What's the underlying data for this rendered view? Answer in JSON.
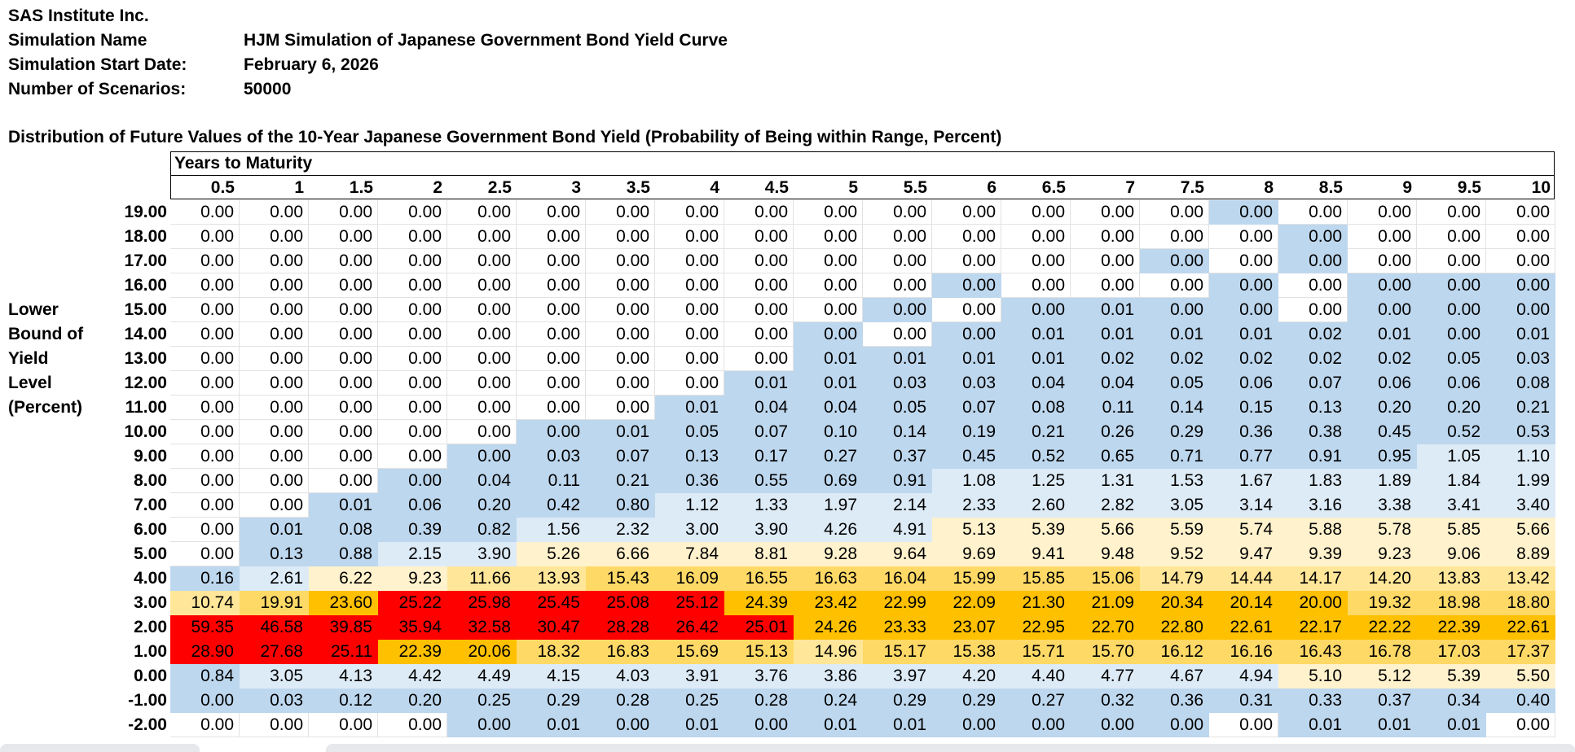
{
  "header": {
    "company": "SAS Institute Inc.",
    "fields": [
      {
        "label": "Simulation Name",
        "value": "HJM Simulation of Japanese Government Bond Yield Curve"
      },
      {
        "label": "Simulation Start Date:",
        "value": "February 6, 2026"
      },
      {
        "label": "Number of Scenarios:",
        "value": "50000"
      }
    ]
  },
  "table": {
    "title": "Distribution of Future Values of the 10-Year Japanese Government Bond Yield (Probability of Being within Range, Percent)",
    "column_group_label": "Years to Maturity",
    "row_axis_label": [
      "Lower",
      "Bound of",
      "Yield",
      "Level",
      "(Percent)"
    ],
    "columns": [
      "0.5",
      "1",
      "1.5",
      "2",
      "2.5",
      "3",
      "3.5",
      "4",
      "4.5",
      "5",
      "5.5",
      "6",
      "6.5",
      "7",
      "7.5",
      "8",
      "8.5",
      "9",
      "9.5",
      "10"
    ],
    "rows": [
      {
        "label": "19.00",
        "values": [
          "0.00",
          "0.00",
          "0.00",
          "0.00",
          "0.00",
          "0.00",
          "0.00",
          "0.00",
          "0.00",
          "0.00",
          "0.00",
          "0.00",
          "0.00",
          "0.00",
          "0.00",
          "0.00",
          "0.00",
          "0.00",
          "0.00",
          "0.00"
        ],
        "zero_shaded": [
          15
        ]
      },
      {
        "label": "18.00",
        "values": [
          "0.00",
          "0.00",
          "0.00",
          "0.00",
          "0.00",
          "0.00",
          "0.00",
          "0.00",
          "0.00",
          "0.00",
          "0.00",
          "0.00",
          "0.00",
          "0.00",
          "0.00",
          "0.00",
          "0.00",
          "0.00",
          "0.00",
          "0.00"
        ],
        "zero_shaded": [
          16
        ]
      },
      {
        "label": "17.00",
        "values": [
          "0.00",
          "0.00",
          "0.00",
          "0.00",
          "0.00",
          "0.00",
          "0.00",
          "0.00",
          "0.00",
          "0.00",
          "0.00",
          "0.00",
          "0.00",
          "0.00",
          "0.00",
          "0.00",
          "0.00",
          "0.00",
          "0.00",
          "0.00"
        ],
        "zero_shaded": [
          14,
          16
        ]
      },
      {
        "label": "16.00",
        "values": [
          "0.00",
          "0.00",
          "0.00",
          "0.00",
          "0.00",
          "0.00",
          "0.00",
          "0.00",
          "0.00",
          "0.00",
          "0.00",
          "0.00",
          "0.00",
          "0.00",
          "0.00",
          "0.00",
          "0.00",
          "0.00",
          "0.00",
          "0.00"
        ],
        "zero_shaded": [
          11,
          15,
          17,
          18,
          19
        ]
      },
      {
        "label": "15.00",
        "values": [
          "0.00",
          "0.00",
          "0.00",
          "0.00",
          "0.00",
          "0.00",
          "0.00",
          "0.00",
          "0.00",
          "0.00",
          "0.00",
          "0.00",
          "0.00",
          "0.01",
          "0.00",
          "0.00",
          "0.00",
          "0.00",
          "0.00",
          "0.00"
        ],
        "zero_shaded": [
          10,
          12,
          14,
          15,
          17,
          18,
          19
        ]
      },
      {
        "label": "14.00",
        "values": [
          "0.00",
          "0.00",
          "0.00",
          "0.00",
          "0.00",
          "0.00",
          "0.00",
          "0.00",
          "0.00",
          "0.00",
          "0.00",
          "0.00",
          "0.01",
          "0.01",
          "0.01",
          "0.01",
          "0.02",
          "0.01",
          "0.00",
          "0.01"
        ],
        "zero_shaded": [
          9,
          11,
          18
        ]
      },
      {
        "label": "13.00",
        "values": [
          "0.00",
          "0.00",
          "0.00",
          "0.00",
          "0.00",
          "0.00",
          "0.00",
          "0.00",
          "0.00",
          "0.01",
          "0.01",
          "0.01",
          "0.01",
          "0.02",
          "0.02",
          "0.02",
          "0.02",
          "0.02",
          "0.05",
          "0.03"
        ],
        "zero_shaded": []
      },
      {
        "label": "12.00",
        "values": [
          "0.00",
          "0.00",
          "0.00",
          "0.00",
          "0.00",
          "0.00",
          "0.00",
          "0.00",
          "0.01",
          "0.01",
          "0.03",
          "0.03",
          "0.04",
          "0.04",
          "0.05",
          "0.06",
          "0.07",
          "0.06",
          "0.06",
          "0.08"
        ],
        "zero_shaded": []
      },
      {
        "label": "11.00",
        "values": [
          "0.00",
          "0.00",
          "0.00",
          "0.00",
          "0.00",
          "0.00",
          "0.00",
          "0.01",
          "0.04",
          "0.04",
          "0.05",
          "0.07",
          "0.08",
          "0.11",
          "0.14",
          "0.15",
          "0.13",
          "0.20",
          "0.20",
          "0.21"
        ],
        "zero_shaded": []
      },
      {
        "label": "10.00",
        "values": [
          "0.00",
          "0.00",
          "0.00",
          "0.00",
          "0.00",
          "0.00",
          "0.01",
          "0.05",
          "0.07",
          "0.10",
          "0.14",
          "0.19",
          "0.21",
          "0.26",
          "0.29",
          "0.36",
          "0.38",
          "0.45",
          "0.52",
          "0.53"
        ],
        "zero_shaded": [
          5
        ]
      },
      {
        "label": "9.00",
        "values": [
          "0.00",
          "0.00",
          "0.00",
          "0.00",
          "0.00",
          "0.03",
          "0.07",
          "0.13",
          "0.17",
          "0.27",
          "0.37",
          "0.45",
          "0.52",
          "0.65",
          "0.71",
          "0.77",
          "0.91",
          "0.95",
          "1.05",
          "1.10"
        ],
        "zero_shaded": [
          4
        ]
      },
      {
        "label": "8.00",
        "values": [
          "0.00",
          "0.00",
          "0.00",
          "0.00",
          "0.04",
          "0.11",
          "0.21",
          "0.36",
          "0.55",
          "0.69",
          "0.91",
          "1.08",
          "1.25",
          "1.31",
          "1.53",
          "1.67",
          "1.83",
          "1.89",
          "1.84",
          "1.99"
        ],
        "zero_shaded": [
          3
        ]
      },
      {
        "label": "7.00",
        "values": [
          "0.00",
          "0.00",
          "0.01",
          "0.06",
          "0.20",
          "0.42",
          "0.80",
          "1.12",
          "1.33",
          "1.97",
          "2.14",
          "2.33",
          "2.60",
          "2.82",
          "3.05",
          "3.14",
          "3.16",
          "3.38",
          "3.41",
          "3.40"
        ],
        "zero_shaded": []
      },
      {
        "label": "6.00",
        "values": [
          "0.00",
          "0.01",
          "0.08",
          "0.39",
          "0.82",
          "1.56",
          "2.32",
          "3.00",
          "3.90",
          "4.26",
          "4.91",
          "5.13",
          "5.39",
          "5.66",
          "5.59",
          "5.74",
          "5.88",
          "5.78",
          "5.85",
          "5.66"
        ],
        "zero_shaded": []
      },
      {
        "label": "5.00",
        "values": [
          "0.00",
          "0.13",
          "0.88",
          "2.15",
          "3.90",
          "5.26",
          "6.66",
          "7.84",
          "8.81",
          "9.28",
          "9.64",
          "9.69",
          "9.41",
          "9.48",
          "9.52",
          "9.47",
          "9.39",
          "9.23",
          "9.06",
          "8.89"
        ],
        "zero_shaded": []
      },
      {
        "label": "4.00",
        "values": [
          "0.16",
          "2.61",
          "6.22",
          "9.23",
          "11.66",
          "13.93",
          "15.43",
          "16.09",
          "16.55",
          "16.63",
          "16.04",
          "15.99",
          "15.85",
          "15.06",
          "14.79",
          "14.44",
          "14.17",
          "14.20",
          "13.83",
          "13.42"
        ],
        "zero_shaded": []
      },
      {
        "label": "3.00",
        "values": [
          "10.74",
          "19.91",
          "23.60",
          "25.22",
          "25.98",
          "25.45",
          "25.08",
          "25.12",
          "24.39",
          "23.42",
          "22.99",
          "22.09",
          "21.30",
          "21.09",
          "20.34",
          "20.14",
          "20.00",
          "19.32",
          "18.98",
          "18.80"
        ],
        "zero_shaded": []
      },
      {
        "label": "2.00",
        "values": [
          "59.35",
          "46.58",
          "39.85",
          "35.94",
          "32.58",
          "30.47",
          "28.28",
          "26.42",
          "25.01",
          "24.26",
          "23.33",
          "23.07",
          "22.95",
          "22.70",
          "22.80",
          "22.61",
          "22.17",
          "22.22",
          "22.39",
          "22.61"
        ],
        "zero_shaded": []
      },
      {
        "label": "1.00",
        "values": [
          "28.90",
          "27.68",
          "25.11",
          "22.39",
          "20.06",
          "18.32",
          "16.83",
          "15.69",
          "15.13",
          "14.96",
          "15.17",
          "15.38",
          "15.71",
          "15.70",
          "16.12",
          "16.16",
          "16.43",
          "16.78",
          "17.03",
          "17.37"
        ],
        "zero_shaded": []
      },
      {
        "label": "0.00",
        "values": [
          "0.84",
          "3.05",
          "4.13",
          "4.42",
          "4.49",
          "4.15",
          "4.03",
          "3.91",
          "3.76",
          "3.86",
          "3.97",
          "4.20",
          "4.40",
          "4.77",
          "4.67",
          "4.94",
          "5.10",
          "5.12",
          "5.39",
          "5.50"
        ],
        "zero_shaded": []
      },
      {
        "label": "-1.00",
        "values": [
          "0.00",
          "0.03",
          "0.12",
          "0.20",
          "0.25",
          "0.29",
          "0.28",
          "0.25",
          "0.28",
          "0.24",
          "0.29",
          "0.29",
          "0.27",
          "0.32",
          "0.36",
          "0.31",
          "0.33",
          "0.37",
          "0.34",
          "0.40"
        ],
        "zero_shaded": [
          0
        ]
      },
      {
        "label": "-2.00",
        "values": [
          "0.00",
          "0.00",
          "0.00",
          "0.00",
          "0.00",
          "0.01",
          "0.00",
          "0.01",
          "0.00",
          "0.01",
          "0.01",
          "0.00",
          "0.00",
          "0.00",
          "0.00",
          "0.00",
          "0.01",
          "0.01",
          "0.01",
          "0.00"
        ],
        "zero_shaded": [
          4,
          6,
          8,
          11,
          12,
          13,
          14
        ]
      }
    ]
  },
  "colors": {
    "zero": "#ffffff",
    "under_1": "#bdd7ee",
    "1_to_5": "#ddebf7",
    "5_to_10": "#fff2cc",
    "10_to_15": "#ffe699",
    "15_to_20": "#ffd966",
    "20_to_25": "#ffc000",
    "25_plus": "#ff0000"
  }
}
